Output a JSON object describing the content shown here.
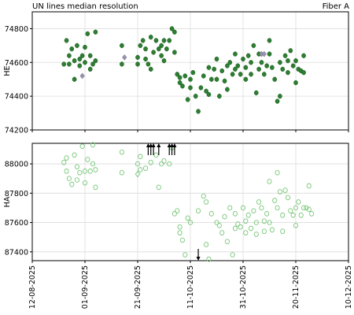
{
  "header": {
    "title_left": "UN lines median resolution",
    "title_right": "Fiber A"
  },
  "chart_data": [
    {
      "type": "scatter",
      "panel": "top",
      "ylabel": "HE",
      "ylim": [
        74200,
        74900
      ],
      "yticks": [
        "74200",
        "74400",
        "74600",
        "74800"
      ],
      "grid": true,
      "series": [
        {
          "marker": "filled-circle",
          "color": "#2e7d32",
          "points": [
            [
              "2025-08-24",
              74590
            ],
            [
              "2025-08-25",
              74730
            ],
            [
              "2025-08-26",
              74640
            ],
            [
              "2025-08-26",
              74590
            ],
            [
              "2025-08-27",
              74680
            ],
            [
              "2025-08-28",
              74610
            ],
            [
              "2025-08-28",
              74500
            ],
            [
              "2025-08-29",
              74700
            ],
            [
              "2025-08-30",
              74620
            ],
            [
              "2025-08-30",
              74580
            ],
            [
              "2025-08-31",
              74640
            ],
            [
              "2025-09-01",
              74690
            ],
            [
              "2025-09-01",
              74600
            ],
            [
              "2025-09-02",
              74770
            ],
            [
              "2025-09-03",
              74560
            ],
            [
              "2025-09-03",
              74640
            ],
            [
              "2025-09-04",
              74590
            ],
            [
              "2025-09-05",
              74610
            ],
            [
              "2025-09-05",
              74780
            ],
            [
              "2025-09-15",
              74590
            ],
            [
              "2025-09-15",
              74700
            ],
            [
              "2025-09-21",
              74590
            ],
            [
              "2025-09-21",
              74630
            ],
            [
              "2025-09-22",
              74700
            ],
            [
              "2025-09-23",
              74730
            ],
            [
              "2025-09-24",
              74620
            ],
            [
              "2025-09-24",
              74680
            ],
            [
              "2025-09-25",
              74590
            ],
            [
              "2025-09-26",
              74560
            ],
            [
              "2025-09-26",
              74750
            ],
            [
              "2025-09-27",
              74660
            ],
            [
              "2025-09-28",
              74730
            ],
            [
              "2025-09-29",
              74680
            ],
            [
              "2025-09-30",
              74700
            ],
            [
              "2025-09-30",
              74640
            ],
            [
              "2025-10-01",
              74610
            ],
            [
              "2025-10-01",
              74730
            ],
            [
              "2025-10-02",
              74680
            ],
            [
              "2025-10-03",
              74730
            ],
            [
              "2025-10-04",
              74800
            ],
            [
              "2025-10-05",
              74660
            ],
            [
              "2025-10-05",
              74780
            ],
            [
              "2025-10-06",
              74530
            ],
            [
              "2025-10-07",
              74480
            ],
            [
              "2025-10-07",
              74510
            ],
            [
              "2025-10-08",
              74460
            ],
            [
              "2025-10-09",
              74520
            ],
            [
              "2025-10-10",
              74380
            ],
            [
              "2025-10-11",
              74500
            ],
            [
              "2025-10-11",
              74450
            ],
            [
              "2025-10-12",
              74540
            ],
            [
              "2025-10-13",
              74400
            ],
            [
              "2025-10-14",
              74310
            ],
            [
              "2025-10-15",
              74450
            ],
            [
              "2025-10-16",
              74520
            ],
            [
              "2025-10-17",
              74430
            ],
            [
              "2025-10-18",
              74570
            ],
            [
              "2025-10-18",
              74410
            ],
            [
              "2025-10-19",
              74500
            ],
            [
              "2025-10-20",
              74560
            ],
            [
              "2025-10-21",
              74620
            ],
            [
              "2025-10-21",
              74500
            ],
            [
              "2025-10-22",
              74400
            ],
            [
              "2025-10-23",
              74550
            ],
            [
              "2025-10-24",
              74490
            ],
            [
              "2025-10-25",
              74580
            ],
            [
              "2025-10-25",
              74440
            ],
            [
              "2025-10-26",
              74600
            ],
            [
              "2025-10-27",
              74530
            ],
            [
              "2025-10-28",
              74650
            ],
            [
              "2025-10-28",
              74560
            ],
            [
              "2025-10-29",
              74580
            ],
            [
              "2025-10-30",
              74530
            ],
            [
              "2025-10-31",
              74620
            ],
            [
              "2025-11-01",
              74500
            ],
            [
              "2025-11-01",
              74570
            ],
            [
              "2025-11-02",
              74640
            ],
            [
              "2025-11-03",
              74600
            ],
            [
              "2025-11-03",
              74530
            ],
            [
              "2025-11-04",
              74700
            ],
            [
              "2025-11-05",
              74420
            ],
            [
              "2025-11-06",
              74650
            ],
            [
              "2025-11-06",
              74560
            ],
            [
              "2025-11-07",
              74600
            ],
            [
              "2025-11-08",
              74530
            ],
            [
              "2025-11-09",
              74580
            ],
            [
              "2025-11-10",
              74730
            ],
            [
              "2025-11-10",
              74650
            ],
            [
              "2025-11-11",
              74570
            ],
            [
              "2025-11-12",
              74500
            ],
            [
              "2025-11-13",
              74370
            ],
            [
              "2025-11-14",
              74600
            ],
            [
              "2025-11-14",
              74400
            ],
            [
              "2025-11-15",
              74560
            ],
            [
              "2025-11-16",
              74640
            ],
            [
              "2025-11-17",
              74610
            ],
            [
              "2025-11-17",
              74540
            ],
            [
              "2025-11-18",
              74670
            ],
            [
              "2025-11-19",
              74580
            ],
            [
              "2025-11-20",
              74480
            ],
            [
              "2025-11-20",
              74610
            ],
            [
              "2025-11-21",
              74560
            ],
            [
              "2025-11-22",
              74550
            ],
            [
              "2025-11-23",
              74640
            ],
            [
              "2025-11-23",
              74540
            ]
          ]
        },
        {
          "marker": "diamond",
          "color": "#9a93ad",
          "points": [
            [
              "2025-08-31",
              74520
            ],
            [
              "2025-09-16",
              74630
            ],
            [
              "2025-11-07",
              74650
            ],
            [
              "2025-11-08",
              74650
            ]
          ]
        }
      ]
    },
    {
      "type": "scatter",
      "panel": "bottom",
      "ylabel": "HA",
      "ylim": [
        87340,
        88140
      ],
      "yticks": [
        "87400",
        "87600",
        "87800",
        "88000"
      ],
      "grid": true,
      "xlabel": "",
      "xlim": [
        "2025-08-12",
        "2025-12-10"
      ],
      "xticks": [
        "12-08-2025",
        "01-09-2025",
        "21-09-2025",
        "11-10-2025",
        "31-10-2025",
        "20-11-2025",
        "10-12-2025"
      ],
      "xtick_dates": [
        "2025-08-12",
        "2025-09-01",
        "2025-09-21",
        "2025-10-11",
        "2025-10-31",
        "2025-11-20",
        "2025-12-10"
      ],
      "series": [
        {
          "marker": "open-circle",
          "color": "#77c777",
          "points": [
            [
              "2025-08-24",
              88010
            ],
            [
              "2025-08-25",
              87950
            ],
            [
              "2025-08-25",
              88040
            ],
            [
              "2025-08-26",
              87900
            ],
            [
              "2025-08-27",
              87860
            ],
            [
              "2025-08-28",
              88060
            ],
            [
              "2025-08-29",
              87980
            ],
            [
              "2025-08-29",
              87890
            ],
            [
              "2025-08-30",
              87940
            ],
            [
              "2025-08-31",
              88120
            ],
            [
              "2025-09-01",
              87950
            ],
            [
              "2025-09-01",
              87870
            ],
            [
              "2025-09-02",
              88030
            ],
            [
              "2025-09-03",
              87950
            ],
            [
              "2025-09-04",
              88000
            ],
            [
              "2025-09-05",
              87840
            ],
            [
              "2025-09-05",
              87960
            ],
            [
              "2025-09-04",
              88130
            ],
            [
              "2025-09-15",
              87940
            ],
            [
              "2025-09-15",
              88080
            ],
            [
              "2025-09-21",
              88000
            ],
            [
              "2025-09-22",
              87960
            ],
            [
              "2025-09-22",
              88050
            ],
            [
              "2025-09-24",
              87970
            ],
            [
              "2025-09-26",
              88010
            ],
            [
              "2025-09-28",
              88060
            ],
            [
              "2025-09-29",
              87840
            ],
            [
              "2025-09-30",
              88000
            ],
            [
              "2025-10-01",
              88020
            ],
            [
              "2025-10-03",
              88000
            ],
            [
              "2025-10-04",
              88110
            ],
            [
              "2025-10-05",
              87660
            ],
            [
              "2025-10-06",
              87680
            ],
            [
              "2025-10-07",
              87530
            ],
            [
              "2025-10-07",
              87570
            ],
            [
              "2025-10-08",
              87480
            ],
            [
              "2025-10-09",
              87380
            ],
            [
              "2025-10-10",
              87630
            ],
            [
              "2025-10-11",
              87600
            ],
            [
              "2025-10-12",
              87310
            ],
            [
              "2025-10-14",
              87680
            ],
            [
              "2025-10-16",
              87780
            ],
            [
              "2025-10-17",
              87450
            ],
            [
              "2025-10-17",
              87740
            ],
            [
              "2025-10-18",
              87350
            ],
            [
              "2025-10-19",
              87660
            ],
            [
              "2025-10-21",
              87600
            ],
            [
              "2025-10-22",
              87580
            ],
            [
              "2025-10-23",
              87530
            ],
            [
              "2025-10-24",
              87640
            ],
            [
              "2025-10-25",
              87470
            ],
            [
              "2025-10-26",
              87700
            ],
            [
              "2025-10-27",
              87380
            ],
            [
              "2025-10-28",
              87560
            ],
            [
              "2025-10-28",
              87660
            ],
            [
              "2025-10-29",
              87590
            ],
            [
              "2025-10-30",
              87570
            ],
            [
              "2025-10-31",
              87700
            ],
            [
              "2025-11-01",
              87610
            ],
            [
              "2025-11-01",
              87530
            ],
            [
              "2025-11-02",
              87650
            ],
            [
              "2025-11-03",
              87560
            ],
            [
              "2025-11-04",
              87680
            ],
            [
              "2025-11-05",
              87600
            ],
            [
              "2025-11-05",
              87520
            ],
            [
              "2025-11-06",
              87740
            ],
            [
              "2025-11-07",
              87700
            ],
            [
              "2025-11-08",
              87540
            ],
            [
              "2025-11-08",
              87610
            ],
            [
              "2025-11-09",
              87660
            ],
            [
              "2025-11-10",
              87880
            ],
            [
              "2025-11-10",
              87600
            ],
            [
              "2025-11-11",
              87550
            ],
            [
              "2025-11-12",
              87750
            ],
            [
              "2025-11-13",
              87940
            ],
            [
              "2025-11-13",
              87700
            ],
            [
              "2025-11-14",
              87810
            ],
            [
              "2025-11-15",
              87540
            ],
            [
              "2025-11-15",
              87650
            ],
            [
              "2025-11-16",
              87820
            ],
            [
              "2025-11-17",
              87770
            ],
            [
              "2025-11-18",
              87680
            ],
            [
              "2025-11-19",
              87650
            ],
            [
              "2025-11-20",
              87580
            ],
            [
              "2025-11-20",
              87700
            ],
            [
              "2025-11-21",
              87740
            ],
            [
              "2025-11-22",
              87650
            ],
            [
              "2025-11-23",
              87700
            ],
            [
              "2025-11-24",
              87700
            ],
            [
              "2025-11-25",
              87690
            ],
            [
              "2025-11-25",
              87850
            ],
            [
              "2025-11-26",
              87660
            ]
          ]
        },
        {
          "marker": "open-diamond",
          "color": "#77c777",
          "points": [
            [
              "2025-09-21",
              87930
            ]
          ]
        }
      ],
      "arrows": [
        {
          "date": "2025-09-25",
          "direction": "up",
          "edge": "top"
        },
        {
          "date": "2025-09-26",
          "direction": "up",
          "edge": "top"
        },
        {
          "date": "2025-09-27",
          "direction": "up",
          "edge": "top"
        },
        {
          "date": "2025-09-29",
          "direction": "up",
          "edge": "top"
        },
        {
          "date": "2025-10-03",
          "direction": "up",
          "edge": "top"
        },
        {
          "date": "2025-10-04",
          "direction": "up",
          "edge": "top"
        },
        {
          "date": "2025-10-05",
          "direction": "up",
          "edge": "top"
        },
        {
          "date": "2025-10-14",
          "direction": "down",
          "edge": "bottom"
        }
      ]
    }
  ]
}
